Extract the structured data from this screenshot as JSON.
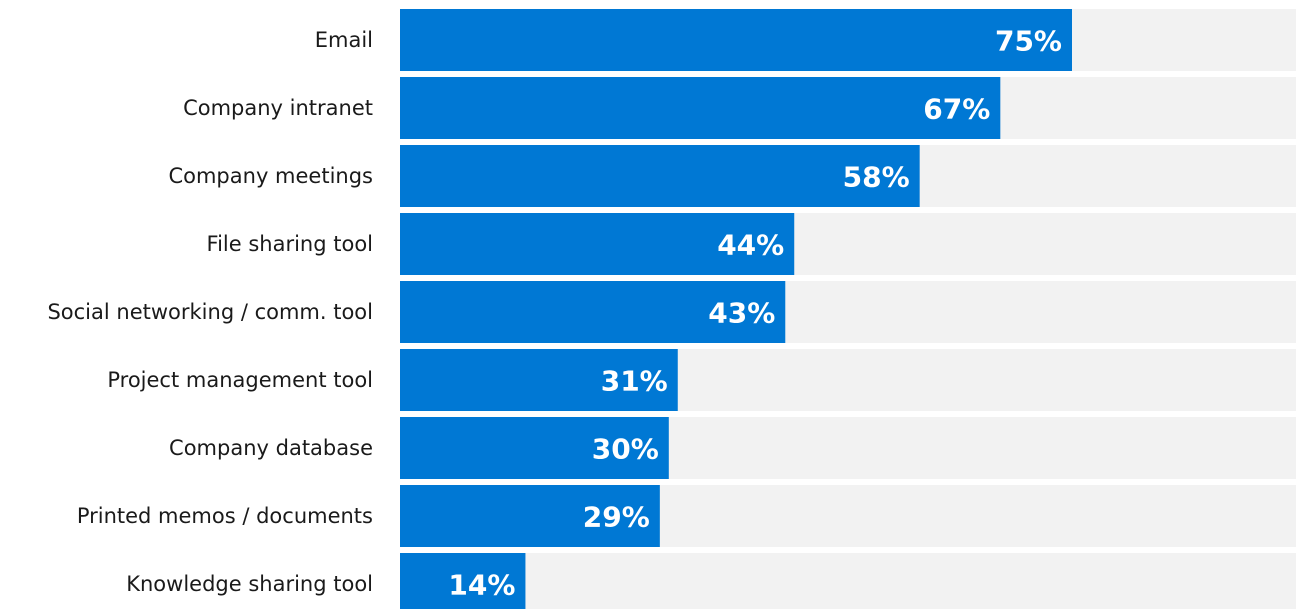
{
  "chart_data": {
    "type": "bar",
    "orientation": "horizontal",
    "categories": [
      "Email",
      "Company intranet",
      "Company meetings",
      "File sharing tool",
      "Social networking / comm. tool",
      "Project management tool",
      "Company database",
      "Printed memos / documents",
      "Knowledge sharing tool"
    ],
    "values": [
      75,
      67,
      58,
      44,
      43,
      31,
      30,
      29,
      14
    ],
    "value_labels": [
      "75%",
      "67%",
      "58%",
      "44%",
      "43%",
      "31%",
      "30%",
      "29%",
      "14%"
    ],
    "xlim": [
      0,
      100
    ],
    "title": "",
    "xlabel": "",
    "ylabel": "",
    "grid": false,
    "legend": "none",
    "colors": {
      "bar": "#0078d4",
      "track": "#f2f2f2",
      "value_text": "#ffffff",
      "category_text": "#1a1a1a"
    }
  }
}
